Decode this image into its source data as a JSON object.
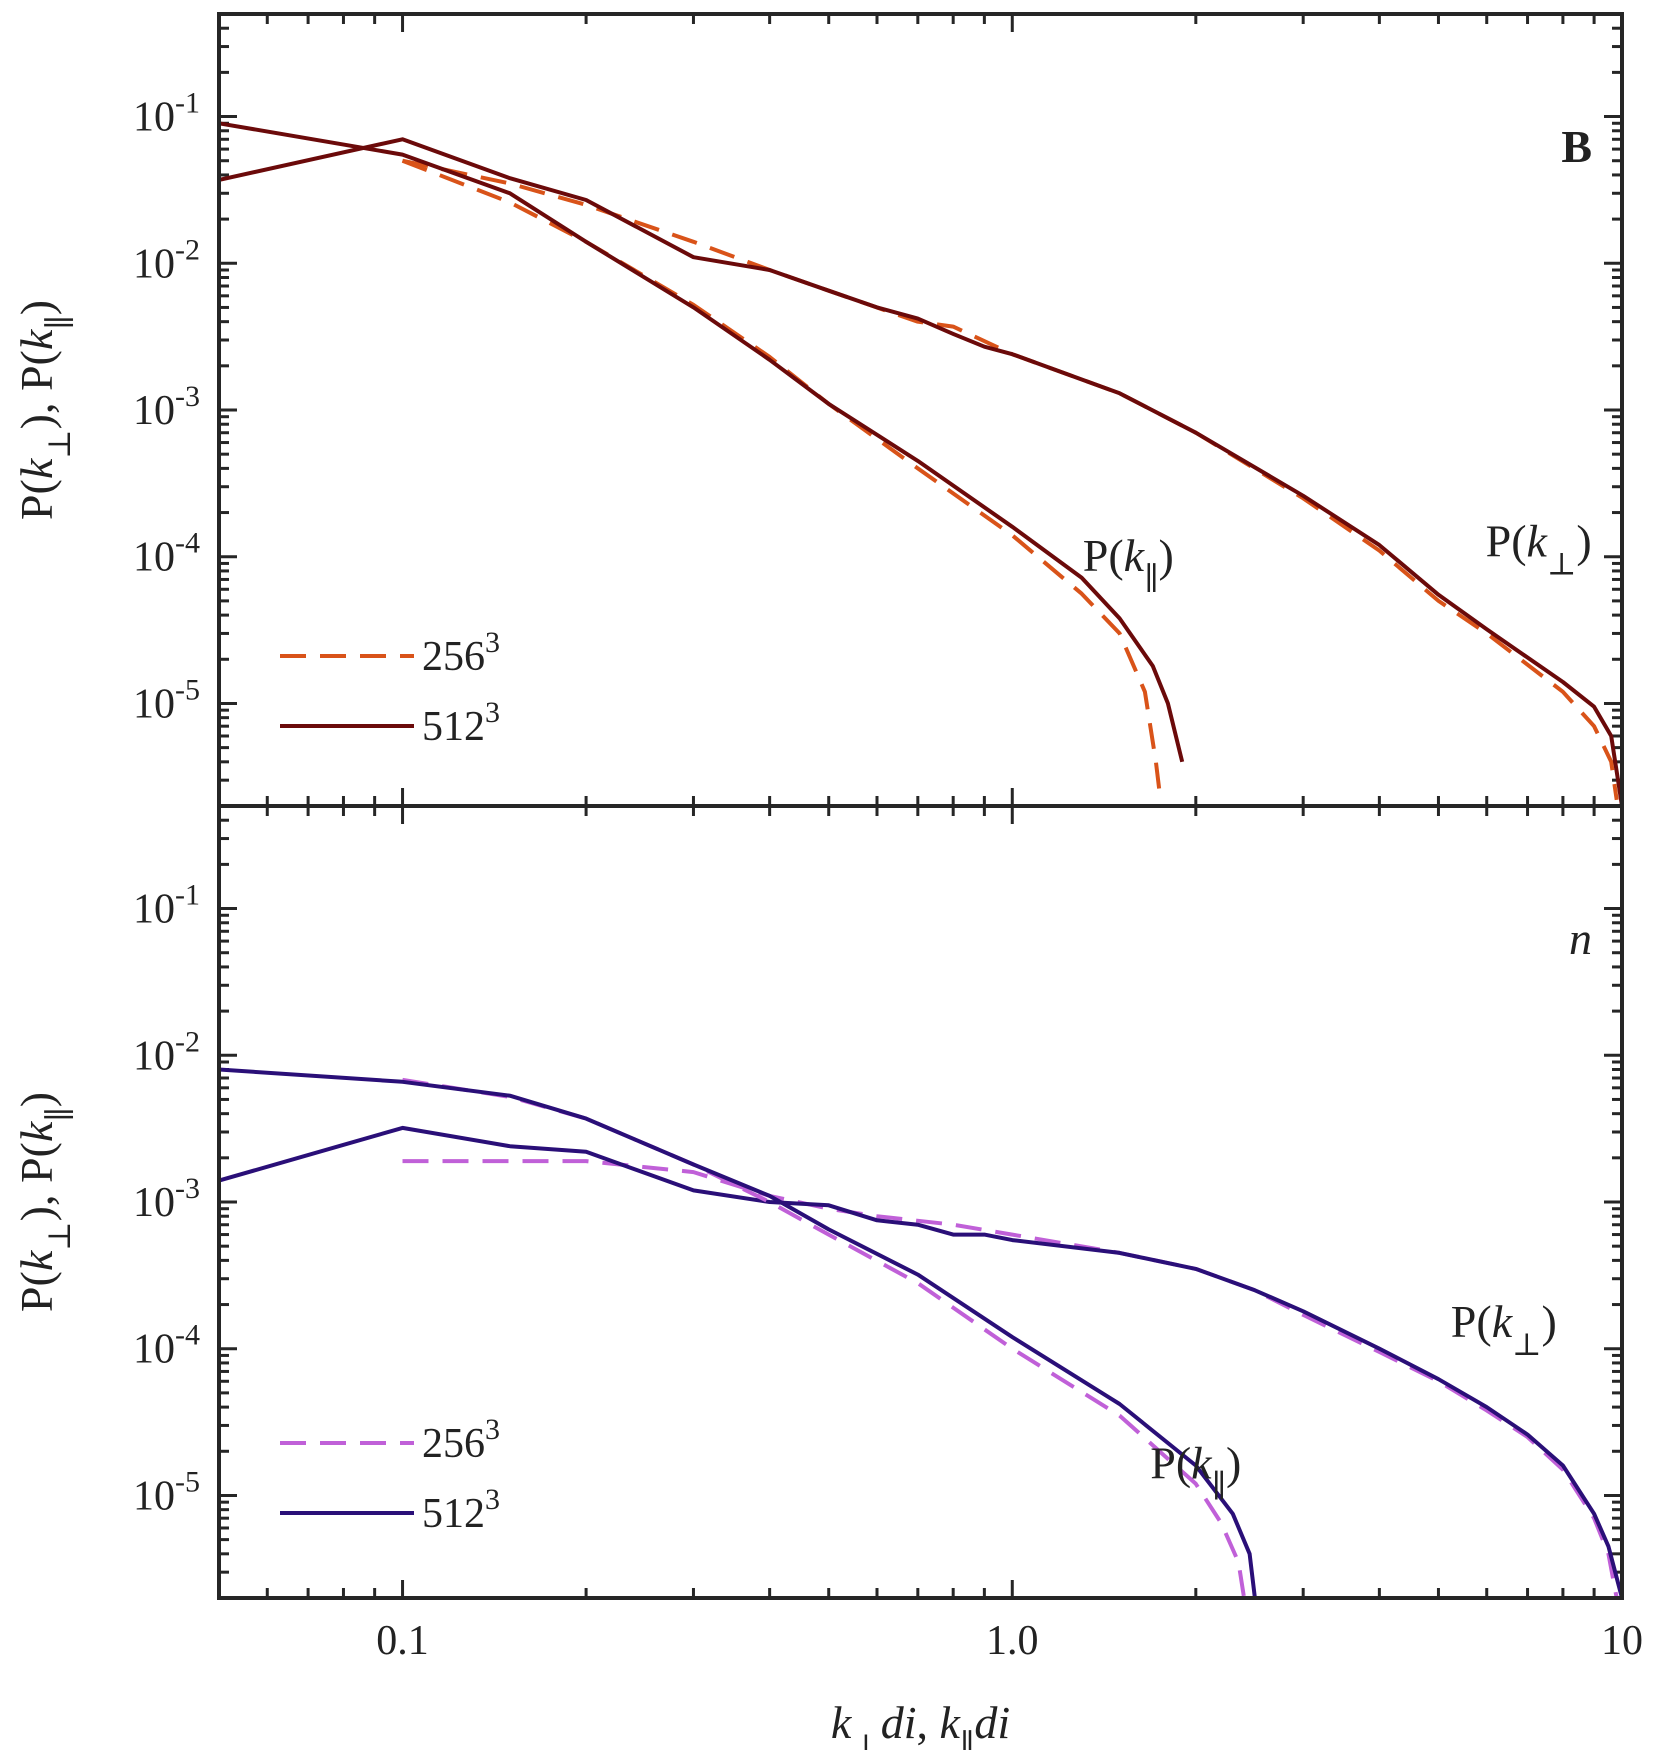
{
  "chart_data": [
    {
      "type": "line",
      "panel_label": "B",
      "xscale": "log",
      "yscale": "log",
      "xlim": [
        0.05,
        10
      ],
      "ylim": [
        2e-06,
        0.5
      ],
      "ylabel": "P(k⊥), P(k∥)",
      "yticks": [
        {
          "value": 0.1,
          "base": "10",
          "exp": "-1"
        },
        {
          "value": 0.01,
          "base": "10",
          "exp": "-2"
        },
        {
          "value": 0.001,
          "base": "10",
          "exp": "-3"
        },
        {
          "value": 0.0001,
          "base": "10",
          "exp": "-4"
        },
        {
          "value": 1e-05,
          "base": "10",
          "exp": "-5"
        }
      ],
      "legend": [
        {
          "base": "256",
          "exp": "3",
          "style": "dashed",
          "color": "#d95319"
        },
        {
          "base": "512",
          "exp": "3",
          "style": "solid",
          "color": "#6b0a0a"
        }
      ],
      "curve_labels": [
        {
          "text": "P(k∥)",
          "x": 1.55,
          "y": 8e-05
        },
        {
          "text": "P(k⊥)",
          "x": 7.3,
          "y": 0.0001
        }
      ],
      "series": [
        {
          "name": "P(k⊥) 256³",
          "style": "dashed",
          "color": "#d95319",
          "x": [
            0.1,
            0.15,
            0.2,
            0.3,
            0.4,
            0.5,
            0.7,
            0.8,
            1.0,
            1.5,
            2.0,
            3.0,
            4.0,
            5.0,
            6.0,
            8.0,
            9.0,
            9.6,
            9.8
          ],
          "y": [
            0.05,
            0.035,
            0.025,
            0.014,
            0.009,
            0.0065,
            0.004,
            0.0037,
            0.0024,
            0.0013,
            0.0007,
            0.00025,
            0.00011,
            5e-05,
            3e-05,
            1.2e-05,
            7e-06,
            4e-06,
            2.2e-06
          ]
        },
        {
          "name": "P(k⊥) 512³",
          "style": "solid",
          "color": "#6b0a0a",
          "x": [
            0.05,
            0.1,
            0.15,
            0.2,
            0.3,
            0.4,
            0.5,
            0.6,
            0.7,
            0.8,
            0.9,
            1.0,
            1.5,
            2.0,
            3.0,
            4.0,
            5.0,
            6.0,
            8.0,
            9.0,
            9.6,
            10.0
          ],
          "y": [
            0.037,
            0.07,
            0.038,
            0.027,
            0.011,
            0.009,
            0.0065,
            0.005,
            0.0042,
            0.0033,
            0.0027,
            0.0024,
            0.0013,
            0.0007,
            0.00026,
            0.00012,
            5.5e-05,
            3.2e-05,
            1.4e-05,
            9.5e-06,
            6e-06,
            2e-06
          ]
        },
        {
          "name": "P(k∥) 256³",
          "style": "dashed",
          "color": "#d95319",
          "x": [
            0.1,
            0.15,
            0.2,
            0.3,
            0.4,
            0.5,
            0.7,
            1.0,
            1.3,
            1.5,
            1.65,
            1.72,
            1.75
          ],
          "y": [
            0.05,
            0.026,
            0.014,
            0.0052,
            0.0023,
            0.0011,
            0.0004,
            0.00014,
            5.6e-05,
            3e-05,
            1.2e-05,
            4e-06,
            2.2e-06
          ]
        },
        {
          "name": "P(k∥) 512³",
          "style": "solid",
          "color": "#6b0a0a",
          "x": [
            0.05,
            0.1,
            0.15,
            0.2,
            0.3,
            0.4,
            0.5,
            0.7,
            1.0,
            1.3,
            1.5,
            1.7,
            1.8,
            1.9
          ],
          "y": [
            0.09,
            0.055,
            0.03,
            0.014,
            0.005,
            0.0022,
            0.0011,
            0.00045,
            0.00016,
            7.2e-05,
            3.8e-05,
            1.8e-05,
            1e-05,
            4e-06
          ]
        }
      ]
    },
    {
      "type": "line",
      "panel_label": "n",
      "xscale": "log",
      "yscale": "log",
      "xlim": [
        0.05,
        10
      ],
      "ylim": [
        2e-06,
        0.5
      ],
      "xlabel": "k⊥di, k∥di",
      "ylabel": "P(k⊥), P(k∥)",
      "xticks": [
        "0.1",
        "1.0",
        "10"
      ],
      "xtick_values": [
        0.1,
        1.0,
        10
      ],
      "yticks": [
        {
          "value": 0.1,
          "base": "10",
          "exp": "-1"
        },
        {
          "value": 0.01,
          "base": "10",
          "exp": "-2"
        },
        {
          "value": 0.001,
          "base": "10",
          "exp": "-3"
        },
        {
          "value": 0.0001,
          "base": "10",
          "exp": "-4"
        },
        {
          "value": 1e-05,
          "base": "10",
          "exp": "-5"
        }
      ],
      "legend": [
        {
          "base": "256",
          "exp": "3",
          "style": "dashed",
          "color": "#c060d8"
        },
        {
          "base": "512",
          "exp": "3",
          "style": "solid",
          "color": "#2a0f78"
        }
      ],
      "curve_labels": [
        {
          "text": "P(k∥)",
          "x": 2.0,
          "y": 1.3e-05
        },
        {
          "text": "P(k⊥)",
          "x": 6.4,
          "y": 0.00012
        }
      ],
      "series": [
        {
          "name": "P(k⊥) 256³",
          "style": "dashed",
          "color": "#c060d8",
          "x": [
            0.1,
            0.2,
            0.3,
            0.4,
            0.5,
            0.6,
            0.8,
            1.0,
            1.5,
            2.0,
            2.5,
            3.0,
            4.0,
            5.0,
            6.0,
            7.0,
            8.0,
            9.0,
            9.5,
            9.8
          ],
          "y": [
            0.0019,
            0.0019,
            0.0016,
            0.0011,
            0.0009,
            0.0008,
            0.0007,
            0.0006,
            0.00045,
            0.00035,
            0.00025,
            0.00017,
            9.5e-05,
            6e-05,
            3.8e-05,
            2.5e-05,
            1.5e-05,
            7e-06,
            4e-06,
            2e-06
          ]
        },
        {
          "name": "P(k⊥) 512³",
          "style": "solid",
          "color": "#2a0f78",
          "x": [
            0.05,
            0.1,
            0.15,
            0.2,
            0.3,
            0.4,
            0.5,
            0.6,
            0.7,
            0.8,
            0.9,
            1.0,
            1.5,
            2.0,
            2.5,
            3.0,
            4.0,
            5.0,
            6.0,
            7.0,
            8.0,
            9.0,
            9.5,
            10.0
          ],
          "y": [
            0.0014,
            0.0032,
            0.0024,
            0.0022,
            0.0012,
            0.001,
            0.00095,
            0.00075,
            0.0007,
            0.0006,
            0.0006,
            0.00055,
            0.00045,
            0.00035,
            0.00025,
            0.00018,
            0.0001,
            6.2e-05,
            4e-05,
            2.6e-05,
            1.6e-05,
            7.5e-06,
            4.5e-06,
            2e-06
          ]
        },
        {
          "name": "P(k∥) 256³",
          "style": "dashed",
          "color": "#c060d8",
          "x": [
            0.1,
            0.15,
            0.2,
            0.3,
            0.4,
            0.5,
            0.7,
            1.0,
            1.5,
            2.0,
            2.2,
            2.35,
            2.4
          ],
          "y": [
            0.0068,
            0.0052,
            0.0037,
            0.0018,
            0.001,
            0.0006,
            0.00028,
            0.0001,
            3.5e-05,
            1.2e-05,
            6.5e-06,
            3.5e-06,
            2e-06
          ]
        },
        {
          "name": "P(k∥) 512³",
          "style": "solid",
          "color": "#2a0f78",
          "x": [
            0.05,
            0.1,
            0.15,
            0.2,
            0.3,
            0.4,
            0.5,
            0.7,
            1.0,
            1.5,
            2.0,
            2.3,
            2.45,
            2.5
          ],
          "y": [
            0.008,
            0.0066,
            0.0053,
            0.0037,
            0.0018,
            0.0011,
            0.00065,
            0.00032,
            0.00012,
            4.2e-05,
            1.6e-05,
            7.5e-06,
            4e-06,
            2e-06
          ]
        }
      ]
    }
  ]
}
